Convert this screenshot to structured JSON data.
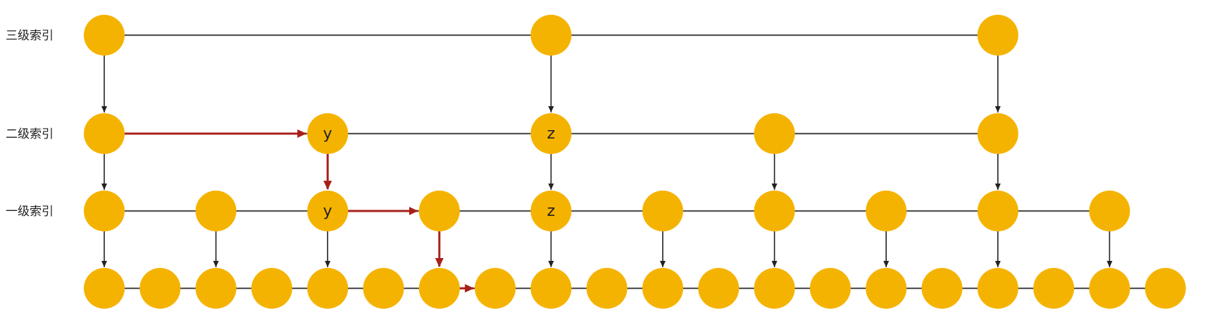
{
  "diagram": {
    "levels": [
      {
        "label": "三级索引",
        "node_indices": [
          0,
          8,
          16
        ]
      },
      {
        "label": "二级索引",
        "node_indices": [
          0,
          4,
          8,
          12,
          16
        ]
      },
      {
        "label": "一级索引",
        "node_indices": [
          0,
          2,
          4,
          6,
          8,
          10,
          12,
          14,
          16,
          18
        ]
      },
      {
        "label": "",
        "node_indices": [
          0,
          1,
          2,
          3,
          4,
          5,
          6,
          7,
          8,
          9,
          10,
          11,
          12,
          13,
          14,
          15,
          16,
          17,
          18,
          19
        ]
      }
    ],
    "node_labels": [
      {
        "level": 1,
        "index": 4,
        "text": "y"
      },
      {
        "level": 1,
        "index": 8,
        "text": "z"
      },
      {
        "level": 2,
        "index": 4,
        "text": "y"
      },
      {
        "level": 2,
        "index": 8,
        "text": "z"
      }
    ],
    "search_path": [
      [
        1,
        0
      ],
      [
        1,
        4
      ],
      [
        2,
        4
      ],
      [
        2,
        6
      ],
      [
        3,
        6
      ],
      [
        3,
        7
      ]
    ],
    "colors": {
      "node": "#F5B301",
      "line": "#555555",
      "arrow": "#222222",
      "path": "#A8201A",
      "text": "#222222"
    }
  }
}
